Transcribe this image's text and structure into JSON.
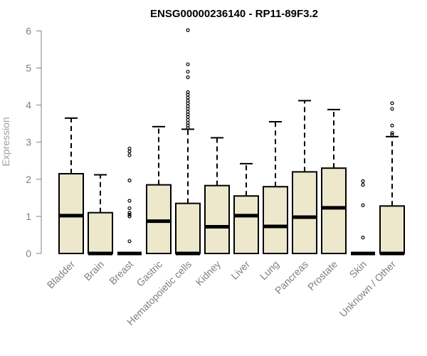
{
  "chart_data": {
    "type": "boxplot",
    "title": "ENSG00000236140 - RP11-89F3.2",
    "ylabel": "Expression",
    "xlabel": "",
    "ylim": [
      0,
      6.2
    ],
    "yticks": [
      0,
      1,
      2,
      3,
      4,
      5,
      6
    ],
    "box_color": "#ede7cc",
    "categories": [
      "Bladder",
      "Brain",
      "Breast",
      "Gastric",
      "Hematopoietic cells",
      "Kidney",
      "Liver",
      "Lung",
      "Pancreas",
      "Prostate",
      "Skin",
      "Unknown / Other"
    ],
    "boxes": [
      {
        "q1": 0,
        "median": 1.02,
        "q3": 2.15,
        "whisker_low": 0,
        "whisker_high": 3.65,
        "outliers": []
      },
      {
        "q1": 0,
        "median": 0.0,
        "q3": 1.1,
        "whisker_low": 0,
        "whisker_high": 2.12,
        "outliers": []
      },
      {
        "q1": 0,
        "median": 0.0,
        "q3": 0.0,
        "whisker_low": 0,
        "whisker_high": 0.0,
        "outliers": [
          0.33,
          1.0,
          1.05,
          1.1,
          1.22,
          1.42,
          1.97,
          2.65,
          2.75,
          2.83
        ]
      },
      {
        "q1": 0,
        "median": 0.87,
        "q3": 1.85,
        "whisker_low": 0,
        "whisker_high": 3.42,
        "outliers": []
      },
      {
        "q1": 0,
        "median": 0.0,
        "q3": 1.35,
        "whisker_low": 0,
        "whisker_high": 3.35,
        "outliers": [
          3.38,
          3.45,
          3.52,
          3.6,
          3.68,
          3.75,
          3.82,
          3.9,
          3.97,
          4.05,
          4.12,
          4.2,
          4.28,
          4.35,
          4.75,
          4.9,
          5.1,
          6.02
        ]
      },
      {
        "q1": 0,
        "median": 0.72,
        "q3": 1.83,
        "whisker_low": 0,
        "whisker_high": 3.12,
        "outliers": []
      },
      {
        "q1": 0,
        "median": 1.02,
        "q3": 1.55,
        "whisker_low": 0,
        "whisker_high": 2.42,
        "outliers": []
      },
      {
        "q1": 0,
        "median": 0.73,
        "q3": 1.8,
        "whisker_low": 0,
        "whisker_high": 3.55,
        "outliers": []
      },
      {
        "q1": 0,
        "median": 0.98,
        "q3": 2.2,
        "whisker_low": 0,
        "whisker_high": 4.12,
        "outliers": []
      },
      {
        "q1": 0,
        "median": 1.23,
        "q3": 2.3,
        "whisker_low": 0,
        "whisker_high": 3.88,
        "outliers": []
      },
      {
        "q1": 0,
        "median": 0.0,
        "q3": 0.0,
        "whisker_low": 0,
        "whisker_high": 0.0,
        "outliers": [
          0.43,
          1.3,
          1.85,
          1.95
        ]
      },
      {
        "q1": 0,
        "median": 0.0,
        "q3": 1.28,
        "whisker_low": 0,
        "whisker_high": 3.15,
        "outliers": [
          3.2,
          3.25,
          3.45,
          3.9,
          4.05
        ]
      }
    ]
  }
}
